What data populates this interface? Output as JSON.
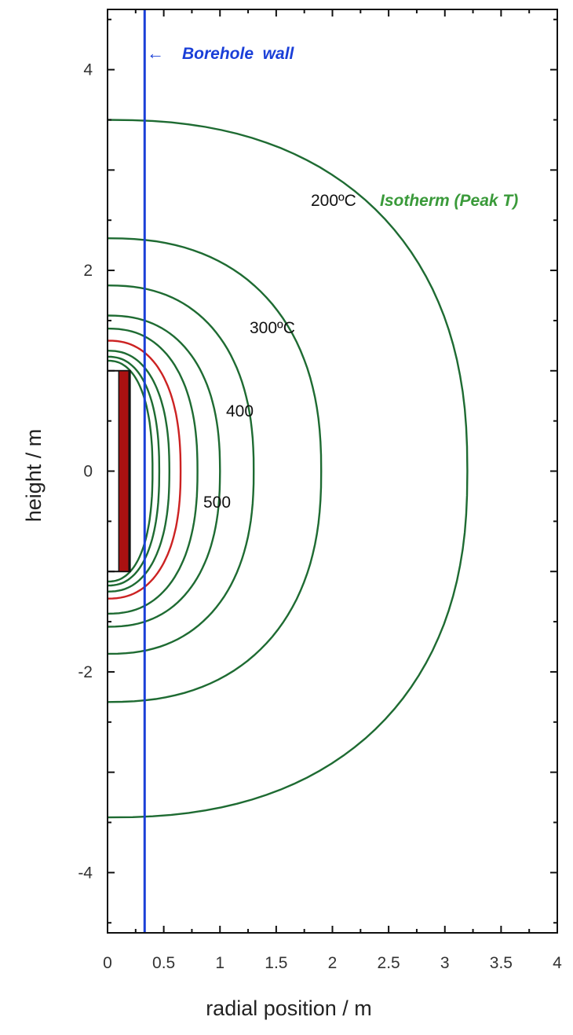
{
  "chart_data": {
    "type": "contour",
    "xlabel": "radial position / m",
    "ylabel": "height / m",
    "xlim": [
      0,
      4
    ],
    "ylim": [
      -4.6,
      4.6
    ],
    "x_ticks": [
      0,
      0.5,
      1,
      1.5,
      2,
      2.5,
      3,
      3.5,
      4
    ],
    "x_tick_labels": [
      "0",
      "0.5",
      "1",
      "1.5",
      "2",
      "2.5",
      "3",
      "3.5",
      "4"
    ],
    "y_ticks": [
      -4,
      -2,
      0,
      2,
      4
    ],
    "y_tick_labels": [
      "-4",
      "-2",
      "0",
      "2",
      "4"
    ],
    "borehole_wall": {
      "x": 0.33,
      "label": "Borehole  wall",
      "arrow": "←",
      "color": "#1a3fd8"
    },
    "canister": {
      "outer_x": 0.2,
      "outer_y": [
        -1.0,
        1.0
      ],
      "inner_x": [
        0.1,
        0.19
      ],
      "color": "#aa1111"
    },
    "isotherms": [
      {
        "peak_c": 200,
        "r_mid": 3.2,
        "z_top": 3.5,
        "z_bot": -3.45,
        "color": "#1e6b32"
      },
      {
        "peak_c": 300,
        "r_mid": 1.9,
        "z_top": 2.32,
        "z_bot": -2.3,
        "color": "#1e6b32"
      },
      {
        "r_mid": 1.3,
        "z_top": 1.85,
        "z_bot": -1.82,
        "color": "#1e6b32"
      },
      {
        "peak_c": 400,
        "r_mid": 1.0,
        "z_top": 1.55,
        "z_bot": -1.55,
        "color": "#1e6b32"
      },
      {
        "peak_c": 500,
        "r_mid": 0.8,
        "z_top": 1.42,
        "z_bot": -1.42,
        "color": "#1e6b32"
      },
      {
        "r_mid": 0.65,
        "z_top": 1.3,
        "z_bot": -1.27,
        "color": "#cc2222"
      },
      {
        "r_mid": 0.55,
        "z_top": 1.2,
        "z_bot": -1.2,
        "color": "#1e6b32"
      },
      {
        "r_mid": 0.46,
        "z_top": 1.14,
        "z_bot": -1.14,
        "color": "#1e6b32"
      },
      {
        "r_mid": 0.4,
        "z_top": 1.1,
        "z_bot": -1.1,
        "color": "#1e6b32"
      }
    ],
    "annotations": {
      "iso200_value": "200",
      "iso200_unit": "ºC",
      "iso200_desc": "Isotherm (Peak T)",
      "iso300": "300ºC",
      "iso400": "400",
      "iso500": "500"
    },
    "colors": {
      "isotherm": "#1e6b32",
      "isotherm_desc": "#3a9a3a",
      "hot_isotherm": "#cc2222",
      "borehole": "#1a3fd8",
      "canister": "#aa1111"
    }
  }
}
